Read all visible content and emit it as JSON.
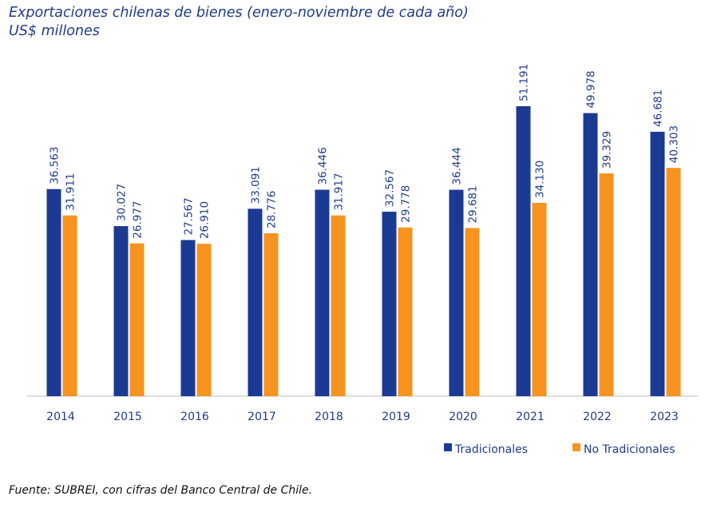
{
  "chart_data": {
    "type": "bar",
    "title": "Exportaciones chilenas de bienes (enero-noviembre de cada año)",
    "subtitle": "US$ millones",
    "categories": [
      "2014",
      "2015",
      "2016",
      "2017",
      "2018",
      "2019",
      "2020",
      "2021",
      "2022",
      "2023"
    ],
    "series": [
      {
        "name": "Tradicionales",
        "color": "#1B3A93",
        "values": [
          36563,
          30027,
          27567,
          33091,
          36446,
          32567,
          36444,
          51191,
          49978,
          46681
        ],
        "labels": [
          "36.563",
          "30.027",
          "27.567",
          "33.091",
          "36.446",
          "32.567",
          "36.444",
          "51.191",
          "49.978",
          "46.681"
        ]
      },
      {
        "name": "No Tradicionales",
        "color": "#F7931E",
        "values": [
          31911,
          26977,
          26910,
          28776,
          31917,
          29778,
          29681,
          34130,
          39329,
          40303
        ],
        "labels": [
          "31.911",
          "26.977",
          "26.910",
          "28.776",
          "31.917",
          "29.778",
          "29.681",
          "34.130",
          "39.329",
          "40.303"
        ]
      }
    ],
    "ylim": [
      0,
      56000
    ],
    "grid": false,
    "legend_position": "bottom-right",
    "source": "Fuente: SUBREI, con cifras del Banco Central de Chile."
  }
}
